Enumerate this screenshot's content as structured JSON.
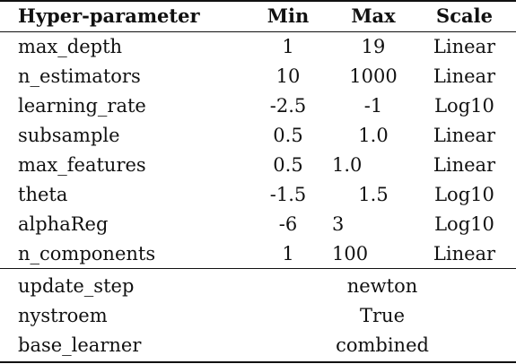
{
  "header": {
    "col_name": "Hyper-parameter",
    "col_min": "Min",
    "col_max": "Max",
    "col_scale": "Scale"
  },
  "rows": [
    {
      "name": "max_depth",
      "min": "1",
      "max": "19",
      "scale": "Linear"
    },
    {
      "name": "n_estimators",
      "min": "10",
      "max": "1000",
      "scale": "Linear"
    },
    {
      "name": "learning_rate",
      "min": "-2.5",
      "max": "-1",
      "scale": "Log10"
    },
    {
      "name": "subsample",
      "min": "0.5",
      "max": "1.0",
      "scale": "Linear"
    },
    {
      "name": "max_features",
      "min": "0.5",
      "max": "1.0",
      "scale": "Linear"
    },
    {
      "name": "theta",
      "min": "-1.5",
      "max": "1.5",
      "scale": "Log10"
    },
    {
      "name": "alphaReg",
      "min": "-6",
      "max": "3",
      "scale": "Log10"
    },
    {
      "name": "n_components",
      "min": "1",
      "max": "100",
      "scale": "Linear"
    }
  ],
  "fixed_rows": [
    {
      "name": "update_step",
      "value": "newton"
    },
    {
      "name": "nystroem",
      "value": "True"
    },
    {
      "name": "base_learner",
      "value": "combined"
    }
  ]
}
